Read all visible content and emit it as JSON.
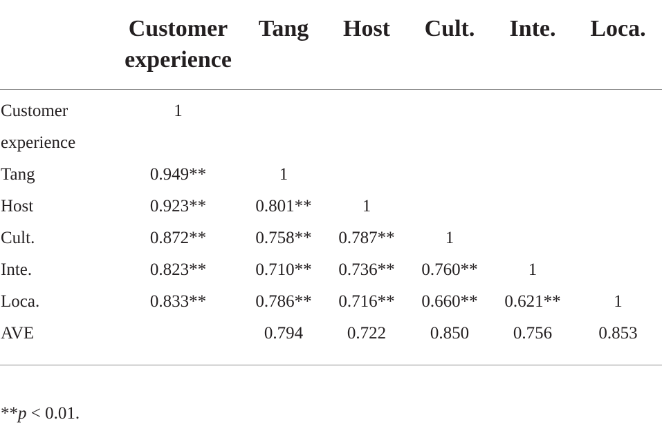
{
  "table": {
    "headers": [
      "",
      "Customer experience",
      "Tang",
      "Host",
      "Cult.",
      "Inte.",
      "Loca."
    ],
    "rows": [
      [
        "Customer experience",
        "1",
        "",
        "",
        "",
        "",
        ""
      ],
      [
        "Tang",
        "0.949**",
        "1",
        "",
        "",
        "",
        ""
      ],
      [
        "Host",
        "0.923**",
        "0.801**",
        "1",
        "",
        "",
        ""
      ],
      [
        "Cult.",
        "0.872**",
        "0.758**",
        "0.787**",
        "1",
        "",
        ""
      ],
      [
        "Inte.",
        "0.823**",
        "0.710**",
        "0.736**",
        "0.760**",
        "1",
        ""
      ],
      [
        "Loca.",
        "0.833**",
        "0.786**",
        "0.716**",
        "0.660**",
        "0.621**",
        "1"
      ],
      [
        "AVE",
        "",
        "0.794",
        "0.722",
        "0.850",
        "0.756",
        "0.853"
      ]
    ]
  },
  "footnote": {
    "stars": "**",
    "p": "p",
    "rest": " < 0.01."
  }
}
